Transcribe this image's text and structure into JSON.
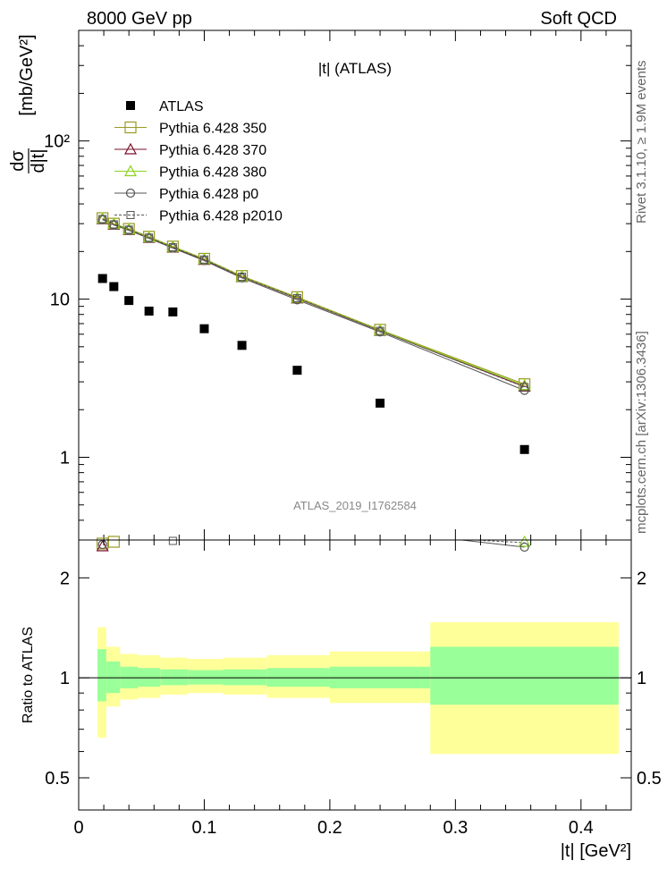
{
  "header": {
    "left": "8000 GeV pp",
    "right": "Soft QCD"
  },
  "side_labels": {
    "rivet": "Rivet 3.1.10, ≥ 1.9M events",
    "mcplots": "mcplots.cern.ch [arXiv:1306.3436]"
  },
  "chart_data": [
    {
      "type": "scatter",
      "title": "|t| (ATLAS)",
      "analysis_label": "ATLAS_2019_I1762584",
      "ylabel": {
        "top": "dσ",
        "bottom": "d|t|",
        "units": "[mb/GeV²]"
      },
      "xlabel": "|t| [GeV²]",
      "ylog": true,
      "ylim": [
        0.3,
        500
      ],
      "xlim": [
        0,
        0.44
      ],
      "yticks": [
        {
          "value": 1,
          "label": "1"
        },
        {
          "value": 10,
          "label": "10"
        },
        {
          "value": 100,
          "label": "10²"
        }
      ],
      "legend_position": "top-left",
      "series": [
        {
          "name": "ATLAS",
          "marker": "filled-square",
          "color": "#000000",
          "x": [
            0.019,
            0.028,
            0.04,
            0.056,
            0.075,
            0.1,
            0.13,
            0.174,
            0.24,
            0.355
          ],
          "y": [
            13.5,
            12.0,
            9.8,
            8.4,
            8.3,
            6.5,
            5.1,
            3.55,
            2.2,
            1.12
          ]
        },
        {
          "name": "Pythia 6.428 350",
          "marker": "open-square",
          "color": "#9a9a24",
          "x": [
            0.019,
            0.028,
            0.04,
            0.056,
            0.075,
            0.1,
            0.13,
            0.174,
            0.24,
            0.355
          ],
          "y": [
            32.5,
            30.0,
            27.8,
            24.8,
            21.5,
            18.0,
            14.0,
            10.3,
            6.4,
            2.9
          ]
        },
        {
          "name": "Pythia 6.428 370",
          "marker": "open-triangle",
          "color": "#7a0f2a",
          "x": [
            0.019,
            0.028,
            0.04,
            0.056,
            0.075,
            0.1,
            0.13,
            0.174,
            0.24,
            0.355
          ],
          "y": [
            32.0,
            29.6,
            27.4,
            24.4,
            21.2,
            17.7,
            13.8,
            10.1,
            6.3,
            2.8
          ]
        },
        {
          "name": "Pythia 6.428 380",
          "marker": "open-triangle",
          "color": "#8ad41a",
          "x": [
            0.019,
            0.028,
            0.04,
            0.056,
            0.075,
            0.1,
            0.13,
            0.174,
            0.24,
            0.355
          ],
          "y": [
            32.3,
            29.9,
            27.6,
            24.6,
            21.4,
            17.9,
            13.9,
            10.2,
            6.35,
            2.85
          ]
        },
        {
          "name": "Pythia 6.428 p0",
          "marker": "open-circle",
          "color": "#555555",
          "x": [
            0.019,
            0.028,
            0.04,
            0.056,
            0.075,
            0.1,
            0.13,
            0.174,
            0.24,
            0.355
          ],
          "y": [
            31.8,
            29.4,
            27.2,
            24.2,
            21.0,
            17.5,
            13.6,
            9.9,
            6.2,
            2.65
          ]
        },
        {
          "name": "Pythia 6.428 p2010",
          "marker": "open-square-small",
          "dashed": true,
          "color": "#555555",
          "x": [
            0.019,
            0.028,
            0.04,
            0.056,
            0.075,
            0.1,
            0.13,
            0.174,
            0.24,
            0.355
          ],
          "y": [
            32.1,
            29.7,
            27.5,
            24.5,
            21.3,
            17.8,
            13.85,
            10.15,
            6.3,
            2.78
          ]
        }
      ]
    },
    {
      "type": "area",
      "ylabel": "Ratio to ATLAS",
      "xlabel": "|t| [GeV²]",
      "ylog": true,
      "ylim": [
        0.4,
        2.6
      ],
      "xlim": [
        0,
        0.44
      ],
      "yticks": [
        {
          "value": 0.5,
          "label": "0.5"
        },
        {
          "value": 1,
          "label": "1"
        },
        {
          "value": 2,
          "label": "2"
        }
      ],
      "xticks": [
        {
          "value": 0,
          "label": "0"
        },
        {
          "value": 0.1,
          "label": "0.1"
        },
        {
          "value": 0.2,
          "label": "0.2"
        },
        {
          "value": 0.3,
          "label": "0.3"
        },
        {
          "value": 0.4,
          "label": "0.4"
        }
      ],
      "bands": [
        {
          "x0": 0.015,
          "x1": 0.022,
          "stat_lo": 0.85,
          "stat_hi": 1.22,
          "tot_lo": 0.66,
          "tot_hi": 1.42
        },
        {
          "x0": 0.022,
          "x1": 0.033,
          "stat_lo": 0.9,
          "stat_hi": 1.12,
          "tot_lo": 0.82,
          "tot_hi": 1.24
        },
        {
          "x0": 0.033,
          "x1": 0.047,
          "stat_lo": 0.93,
          "stat_hi": 1.08,
          "tot_lo": 0.86,
          "tot_hi": 1.18
        },
        {
          "x0": 0.047,
          "x1": 0.065,
          "stat_lo": 0.94,
          "stat_hi": 1.07,
          "tot_lo": 0.87,
          "tot_hi": 1.17
        },
        {
          "x0": 0.065,
          "x1": 0.087,
          "stat_lo": 0.95,
          "stat_hi": 1.06,
          "tot_lo": 0.89,
          "tot_hi": 1.15
        },
        {
          "x0": 0.087,
          "x1": 0.115,
          "stat_lo": 0.955,
          "stat_hi": 1.055,
          "tot_lo": 0.9,
          "tot_hi": 1.14
        },
        {
          "x0": 0.115,
          "x1": 0.15,
          "stat_lo": 0.95,
          "stat_hi": 1.06,
          "tot_lo": 0.89,
          "tot_hi": 1.15
        },
        {
          "x0": 0.15,
          "x1": 0.2,
          "stat_lo": 0.94,
          "stat_hi": 1.07,
          "tot_lo": 0.87,
          "tot_hi": 1.17
        },
        {
          "x0": 0.2,
          "x1": 0.28,
          "stat_lo": 0.93,
          "stat_hi": 1.08,
          "tot_lo": 0.84,
          "tot_hi": 1.2
        },
        {
          "x0": 0.28,
          "x1": 0.43,
          "stat_lo": 0.83,
          "stat_hi": 1.24,
          "tot_lo": 0.59,
          "tot_hi": 1.47
        }
      ],
      "band_colors": {
        "stat": "#99ff99",
        "total": "#ffff99"
      },
      "offscale_note": "MC/data ratios (~2.3-2.6) lie at or above the top of the ratio range"
    }
  ]
}
